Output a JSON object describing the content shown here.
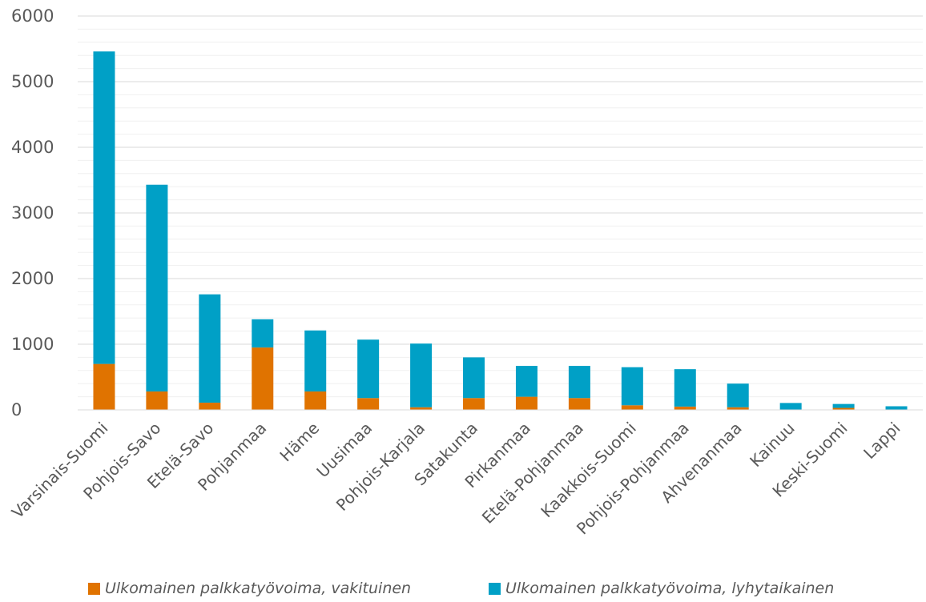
{
  "chart_data": {
    "type": "bar",
    "stacked": true,
    "title": "",
    "xlabel": "",
    "ylabel": "",
    "ylim": [
      0,
      6000
    ],
    "yticks": [
      0,
      1000,
      2000,
      3000,
      4000,
      5000,
      6000
    ],
    "grid": true,
    "legend_position": "bottom",
    "categories": [
      "Varsinais-Suomi",
      "Pohjois-Savo",
      "Etelä-Savo",
      "Pohjanmaa",
      "Häme",
      "Uusimaa",
      "Pohjois-Karjala",
      "Satakunta",
      "Pirkanmaa",
      "Etelä-Pohjanmaa",
      "Kaakkois-Suomi",
      "Pohjois-Pohjanmaa",
      "Ahvenanmaa",
      "Kainuu",
      "Keski-Suomi",
      "Lappi"
    ],
    "series": [
      {
        "name": "Ulkomainen palkkatyövoima, vakituinen",
        "color": "#E07300",
        "values": [
          700,
          280,
          110,
          950,
          280,
          180,
          40,
          180,
          200,
          180,
          70,
          50,
          40,
          5,
          30,
          5
        ]
      },
      {
        "name": "Ulkomainen palkkatyövoima, lyhytaikainen",
        "color": "#00A0C6",
        "values": [
          4760,
          3150,
          1650,
          430,
          930,
          890,
          970,
          620,
          470,
          490,
          580,
          570,
          360,
          100,
          60,
          50
        ]
      }
    ]
  }
}
